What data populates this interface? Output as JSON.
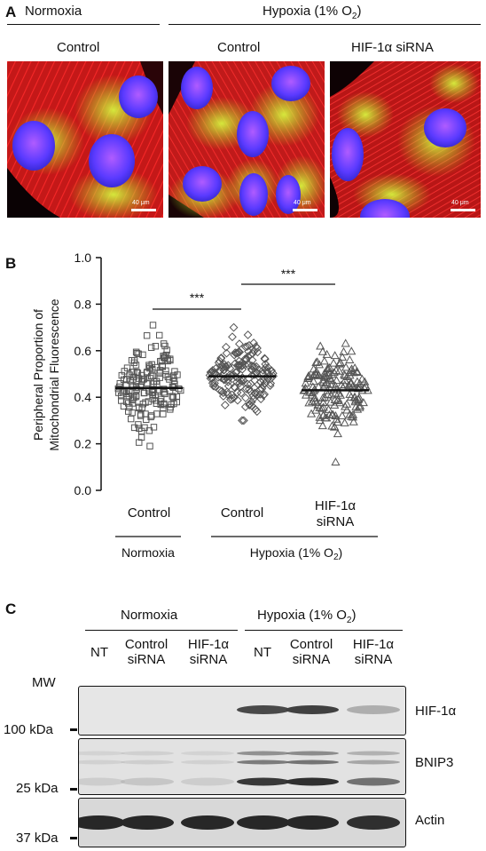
{
  "panel_a": {
    "letter": "A",
    "group_normoxia": "Normoxia",
    "group_hypoxia": "Hypoxia (1% O",
    "group_hypoxia_sub": "2",
    "group_hypoxia_close": ")",
    "labels": [
      "Control",
      "Control",
      "HIF-1α  siRNA"
    ],
    "scale_bar_label": "40 μm"
  },
  "panel_b": {
    "letter": "B",
    "ylabel_line1": "Peripheral Proportion of",
    "ylabel_line2": "Mitochondrial Fluorescence",
    "yticks": [
      "0.0",
      "0.2",
      "0.4",
      "0.6",
      "0.8",
      "1.0"
    ],
    "sig_marks": [
      "***",
      "***"
    ],
    "xlabels": [
      "Control",
      "Control",
      "HIF-1α",
      "siRNA"
    ],
    "group_normoxia": "Normoxia",
    "group_hypoxia": "Hypoxia (1% O",
    "group_hypoxia_sub": "2",
    "group_hypoxia_close": ")"
  },
  "chart_data": {
    "type": "scatter",
    "title": "",
    "xlabel": "",
    "ylabel": "Peripheral Proportion of Mitochondrial Fluorescence",
    "ylim": [
      0,
      1.0
    ],
    "categories": [
      "Control (Normoxia)",
      "Control (Hypoxia)",
      "HIF-1α siRNA (Hypoxia)"
    ],
    "markers": [
      "square",
      "diamond",
      "triangle"
    ],
    "series": [
      {
        "values": [
          0.44
        ],
        "range": [
          0.19,
          0.71
        ]
      },
      {
        "values": [
          0.49
        ],
        "range": [
          0.3,
          0.7
        ]
      },
      {
        "values": [
          0.43
        ],
        "range": [
          0.12,
          0.63
        ]
      }
    ],
    "significance": [
      "Normoxia Control vs Hypoxia Control: ***",
      "Hypoxia Control vs HIF-1α siRNA: ***"
    ],
    "grid": false
  },
  "panel_c": {
    "letter": "C",
    "group_normoxia": "Normoxia",
    "group_hypoxia": "Hypoxia (1% O",
    "group_hypoxia_sub": "2",
    "group_hypoxia_close": ")",
    "lanes": [
      {
        "l1": "NT",
        "l2": ""
      },
      {
        "l1": "Control",
        "l2": "siRNA"
      },
      {
        "l1": "HIF-1α",
        "l2": "siRNA"
      },
      {
        "l1": "NT",
        "l2": ""
      },
      {
        "l1": "Control",
        "l2": "siRNA"
      },
      {
        "l1": "HIF-1α",
        "l2": "siRNA"
      }
    ],
    "mw_title": "MW",
    "markers": [
      "100 kDa",
      "25 kDa",
      "37 kDa"
    ],
    "blots": [
      "HIF-1α",
      "BNIP3",
      "Actin"
    ],
    "band_intensity": {
      "HIF-1α": [
        0,
        0,
        0,
        0.75,
        0.8,
        0.3
      ],
      "BNIP3": [
        0.1,
        0.15,
        0.1,
        0.85,
        0.9,
        0.55
      ],
      "Actin": [
        0.95,
        0.95,
        0.95,
        0.95,
        0.95,
        0.9
      ]
    }
  }
}
